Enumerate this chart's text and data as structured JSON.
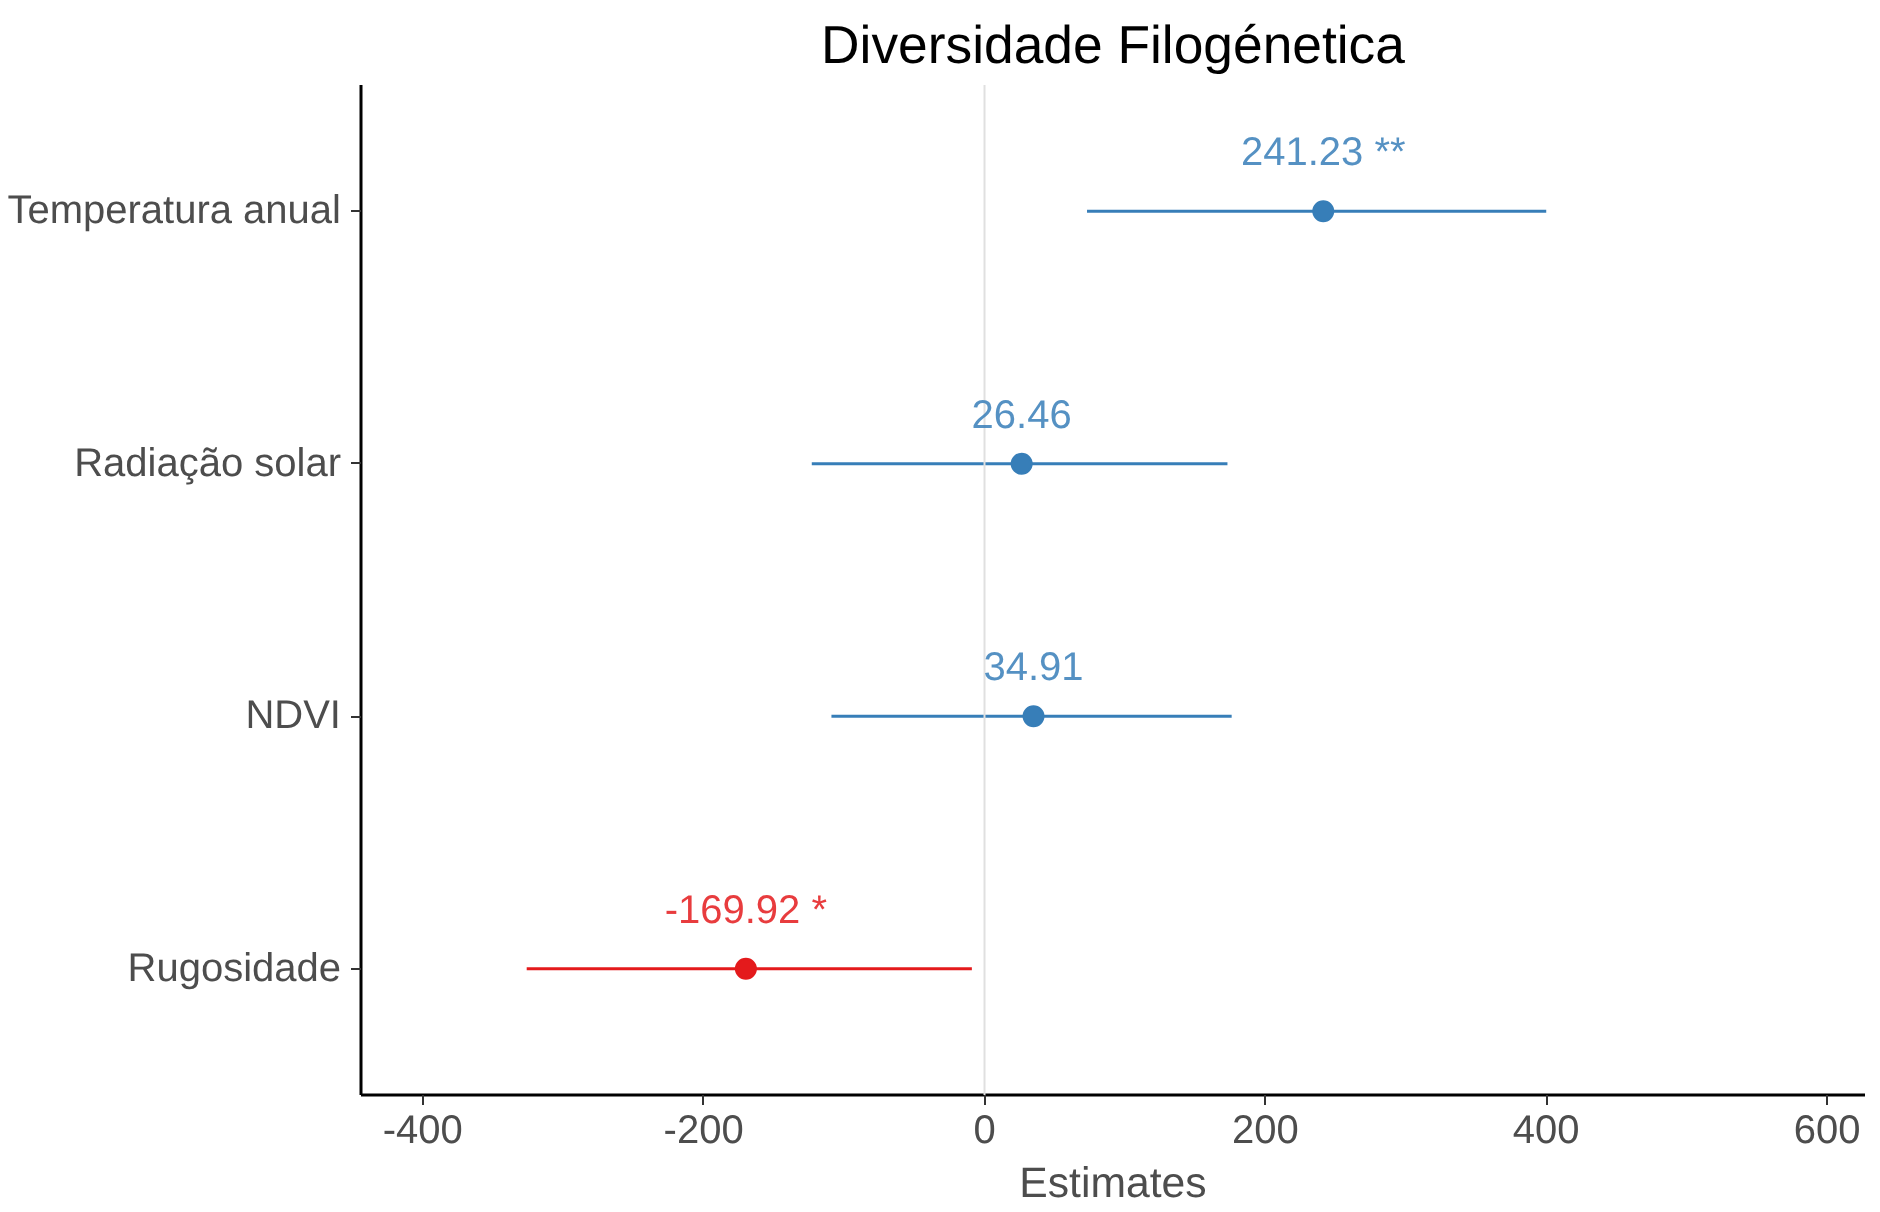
{
  "chart_data": {
    "type": "scatter",
    "orientation": "horizontal",
    "title": "Diversidade Filogénetica",
    "xlabel": "Estimates",
    "categories": [
      "Temperatura anual",
      "Radiação solar",
      "NDVI",
      "Rugosidade"
    ],
    "values": [
      241.23,
      26.46,
      34.91,
      -169.92
    ],
    "errors": [
      [
        73,
        400
      ],
      [
        -123,
        173
      ],
      [
        -109,
        176
      ],
      [
        -326,
        -9
      ]
    ],
    "colors": [
      "#377eb8",
      "#377eb8",
      "#377eb8",
      "#e41a1c"
    ],
    "value_labels": [
      "241.23 **",
      "26.46",
      "34.91",
      "-169.92 *"
    ],
    "xlim": [
      -444,
      627
    ],
    "xticks": [
      -400,
      -200,
      0,
      200,
      400,
      600
    ],
    "ref_lines": [
      {
        "axis": "x",
        "value": 0,
        "color": "#e0e0e0"
      }
    ],
    "grid": false,
    "marker": "circle"
  }
}
